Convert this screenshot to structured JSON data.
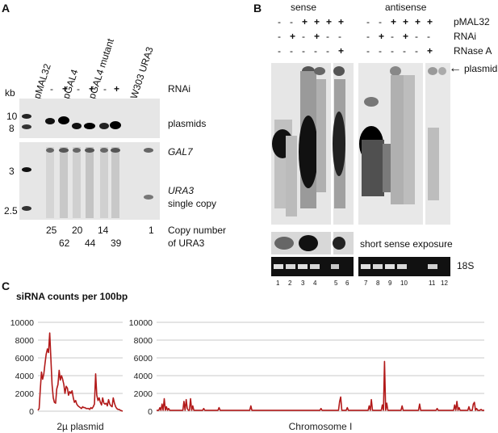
{
  "panel_a": {
    "letter": "A",
    "kb_label": "kb",
    "lane_headers": [
      "pMAL32",
      "pGAL4",
      "pGAL4 mutant",
      "W303 URA3"
    ],
    "rnai_label": "RNAi",
    "rnai_signs": [
      "-",
      "+",
      "-",
      "+",
      "-",
      "+"
    ],
    "kb_markers": [
      "10",
      "8",
      "3",
      "2.5"
    ],
    "band_labels": {
      "plasmids": "plasmids",
      "gal7": "GAL7",
      "ura3": "URA3",
      "single_copy": "single copy"
    },
    "copy_numbers_top": [
      "25",
      "20",
      "14",
      "1"
    ],
    "copy_numbers_bottom": [
      "62",
      "44",
      "39"
    ],
    "copy_number_label": "Copy number",
    "copy_number_label2": "of URA3"
  },
  "panel_b": {
    "letter": "B",
    "sense_label": "sense",
    "antisense_label": "antisense",
    "row_labels": [
      "pMAL32",
      "RNAi",
      "RNase A"
    ],
    "signs_sense": [
      [
        "-",
        "-",
        "+",
        "+",
        "+",
        "+"
      ],
      [
        "-",
        "+",
        "-",
        "+",
        "-",
        "-"
      ],
      [
        "-",
        "-",
        "-",
        "-",
        "-",
        "+"
      ]
    ],
    "signs_antisense": [
      [
        "-",
        "-",
        "+",
        "+",
        "+",
        "+"
      ],
      [
        "-",
        "+",
        "-",
        "+",
        "-",
        "-"
      ],
      [
        "-",
        "-",
        "-",
        "-",
        "-",
        "+"
      ]
    ],
    "plasmid_arrow_label": "plasmid",
    "short_exposure_label": "short sense exposure",
    "rrna_label": "18S",
    "lane_numbers": [
      "1",
      "2",
      "3",
      "4",
      "5",
      "6",
      "7",
      "8",
      "9",
      "10",
      "11",
      "12"
    ]
  },
  "panel_c": {
    "letter": "C",
    "title": "siRNA counts per 100bp",
    "color": "#b21a1a"
  },
  "chart_data": [
    {
      "type": "line",
      "title": "siRNA counts per 100bp",
      "xlabel": "2µ plasmid",
      "ylabel": "",
      "ylim": [
        0,
        10000
      ],
      "yticks": [
        "0",
        "2000",
        "4000",
        "6000",
        "8000",
        "10000"
      ],
      "grid": true,
      "x": [
        0,
        1,
        2,
        3,
        4,
        5,
        6,
        7,
        8,
        9,
        10,
        11,
        12,
        13,
        14,
        15,
        16,
        17,
        18,
        19,
        20,
        21,
        22,
        23,
        24,
        25,
        26,
        27,
        28,
        29,
        30,
        31,
        32,
        33,
        34,
        35,
        36,
        37,
        38,
        39,
        40,
        41,
        42,
        43,
        44,
        45,
        46,
        47,
        48,
        49,
        50,
        51,
        52,
        53,
        54,
        55,
        56,
        57,
        58,
        59,
        60,
        61,
        62,
        63,
        64,
        65,
        66,
        67,
        68,
        69,
        70,
        71,
        72
      ],
      "values": [
        100,
        300,
        2400,
        4400,
        3600,
        4200,
        5400,
        6400,
        7000,
        6600,
        8800,
        6000,
        3000,
        1500,
        1000,
        900,
        2500,
        3000,
        4600,
        3500,
        4000,
        3600,
        3000,
        2000,
        2800,
        2600,
        1800,
        2200,
        2000,
        2300,
        1500,
        1000,
        1200,
        800,
        600,
        500,
        400,
        300,
        500,
        400,
        400,
        300,
        300,
        300,
        200,
        400,
        300,
        500,
        800,
        4200,
        1800,
        1200,
        1500,
        1000,
        700,
        1500,
        900,
        800,
        900,
        600,
        1300,
        800,
        600,
        500,
        1500,
        900,
        500,
        300,
        200,
        200,
        100,
        50,
        0
      ]
    },
    {
      "type": "line",
      "title": "",
      "xlabel": "Chromosome I",
      "ylabel": "",
      "ylim": [
        0,
        10000
      ],
      "yticks": [
        "0",
        "2000",
        "4000",
        "6000",
        "8000",
        "10000"
      ],
      "grid": true,
      "x_count": 300,
      "baseline": 100,
      "peaks": [
        {
          "x": 3,
          "value": 400
        },
        {
          "x": 5,
          "value": 800
        },
        {
          "x": 7,
          "value": 1400
        },
        {
          "x": 9,
          "value": 500
        },
        {
          "x": 11,
          "value": 300
        },
        {
          "x": 25,
          "value": 1100
        },
        {
          "x": 27,
          "value": 1300
        },
        {
          "x": 28,
          "value": 300
        },
        {
          "x": 31,
          "value": 1400
        },
        {
          "x": 33,
          "value": 600
        },
        {
          "x": 43,
          "value": 300
        },
        {
          "x": 57,
          "value": 400
        },
        {
          "x": 86,
          "value": 600
        },
        {
          "x": 150,
          "value": 300
        },
        {
          "x": 167,
          "value": 1100
        },
        {
          "x": 168,
          "value": 1600
        },
        {
          "x": 174,
          "value": 400
        },
        {
          "x": 194,
          "value": 600
        },
        {
          "x": 196,
          "value": 1300
        },
        {
          "x": 206,
          "value": 700
        },
        {
          "x": 208,
          "value": 5600
        },
        {
          "x": 210,
          "value": 900
        },
        {
          "x": 224,
          "value": 600
        },
        {
          "x": 240,
          "value": 800
        },
        {
          "x": 256,
          "value": 300
        },
        {
          "x": 272,
          "value": 700
        },
        {
          "x": 274,
          "value": 1100
        },
        {
          "x": 276,
          "value": 400
        },
        {
          "x": 285,
          "value": 500
        },
        {
          "x": 289,
          "value": 800
        },
        {
          "x": 290,
          "value": 1000
        },
        {
          "x": 292,
          "value": 300
        },
        {
          "x": 296,
          "value": 200
        }
      ]
    }
  ]
}
